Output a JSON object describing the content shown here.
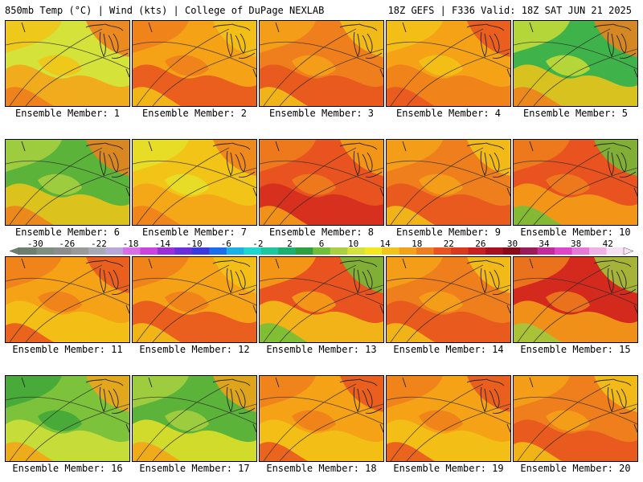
{
  "header": {
    "title_left": "850mb Temp (°C) | Wind (kts) | College of DuPage NEXLAB",
    "title_right": "18Z GEFS | F336 Valid: 18Z SAT JUN 21 2025"
  },
  "panels": [
    {
      "label": "Ensemble Member: 1",
      "palette": [
        "#d4e23a",
        "#f2c418",
        "#f5a217",
        "#ed7a1d"
      ]
    },
    {
      "label": "Ensemble Member: 2",
      "palette": [
        "#f5a217",
        "#ef7f1c",
        "#e8531f",
        "#f2c418"
      ]
    },
    {
      "label": "Ensemble Member: 3",
      "palette": [
        "#ef7f1c",
        "#f5a217",
        "#e8531f",
        "#f2c418"
      ]
    },
    {
      "label": "Ensemble Member: 4",
      "palette": [
        "#f5a217",
        "#f2c418",
        "#ef7f1c",
        "#e8531f"
      ]
    },
    {
      "label": "Ensemble Member: 5",
      "palette": [
        "#3fb34a",
        "#c9dc36",
        "#f2c418",
        "#ef7f1c"
      ]
    },
    {
      "label": "Ensemble Member: 6",
      "palette": [
        "#5cb33a",
        "#a8d040",
        "#f2c418",
        "#ef7f1c"
      ]
    },
    {
      "label": "Ensemble Member: 7",
      "palette": [
        "#f2c418",
        "#e5e22a",
        "#f5a217",
        "#ef7f1c"
      ]
    },
    {
      "label": "Ensemble Member: 8",
      "palette": [
        "#e8531f",
        "#ef7f1c",
        "#d42a1e",
        "#f5a217"
      ]
    },
    {
      "label": "Ensemble Member: 9",
      "palette": [
        "#ef7f1c",
        "#f5a217",
        "#e8531f",
        "#f2c418"
      ]
    },
    {
      "label": "Ensemble Member: 10",
      "palette": [
        "#e8531f",
        "#ef7f1c",
        "#f5a217",
        "#6fbf3a"
      ]
    },
    {
      "label": "Ensemble Member: 11",
      "palette": [
        "#f5a217",
        "#ef7f1c",
        "#f2c418",
        "#e8531f"
      ]
    },
    {
      "label": "Ensemble Member: 12",
      "palette": [
        "#f5a217",
        "#ef7f1c",
        "#e8531f",
        "#f2c418"
      ]
    },
    {
      "label": "Ensemble Member: 13",
      "palette": [
        "#e8531f",
        "#f5a217",
        "#f2c418",
        "#6fbf3a"
      ]
    },
    {
      "label": "Ensemble Member: 14",
      "palette": [
        "#ef7f1c",
        "#f5a217",
        "#e8531f",
        "#f2c418"
      ]
    },
    {
      "label": "Ensemble Member: 15",
      "palette": [
        "#d42a1e",
        "#ef7f1c",
        "#f5a217",
        "#9ccb3d"
      ]
    },
    {
      "label": "Ensemble Member: 16",
      "palette": [
        "#7cc23a",
        "#3fa63a",
        "#d4e23a",
        "#f5a217"
      ]
    },
    {
      "label": "Ensemble Member: 17",
      "palette": [
        "#5cb33a",
        "#a8d040",
        "#e5e22a",
        "#f5a217"
      ]
    },
    {
      "label": "Ensemble Member: 18",
      "palette": [
        "#f5a217",
        "#ef7f1c",
        "#f2c418",
        "#e8531f"
      ]
    },
    {
      "label": "Ensemble Member: 19",
      "palette": [
        "#f5a217",
        "#ef7f1c",
        "#f2c418",
        "#e8531f"
      ]
    },
    {
      "label": "Ensemble Member: 20",
      "palette": [
        "#ef7f1c",
        "#f5a217",
        "#e8531f",
        "#f2c418"
      ]
    }
  ],
  "colorbar": {
    "min": -32,
    "max": 44,
    "labels": [
      "-30",
      "-26",
      "-22",
      "-18",
      "-14",
      "-10",
      "-6",
      "-2",
      "2",
      "6",
      "10",
      "14",
      "18",
      "22",
      "26",
      "30",
      "34",
      "38",
      "42"
    ],
    "colors": [
      "#6d7f6f",
      "#7f8f7f",
      "#8d8d8d",
      "#9a9a9a",
      "#a9a9b5",
      "#b8a8d8",
      "#d86ee8",
      "#cc44e0",
      "#9a2fd8",
      "#6a2fd8",
      "#3a3ad8",
      "#1a6ee8",
      "#1ab0e8",
      "#1ad8d0",
      "#1ac8a0",
      "#1ab070",
      "#2fa040",
      "#6fbf3a",
      "#a8d040",
      "#d4e23a",
      "#f2e81a",
      "#f2c418",
      "#f5a217",
      "#ef7f1c",
      "#e8531f",
      "#d83a1e",
      "#c8201e",
      "#a8121e",
      "#8a0a1a",
      "#9a1a5a",
      "#c42a9a",
      "#e044c8",
      "#e878d8",
      "#f0b0e8",
      "#f8e0f4"
    ]
  }
}
